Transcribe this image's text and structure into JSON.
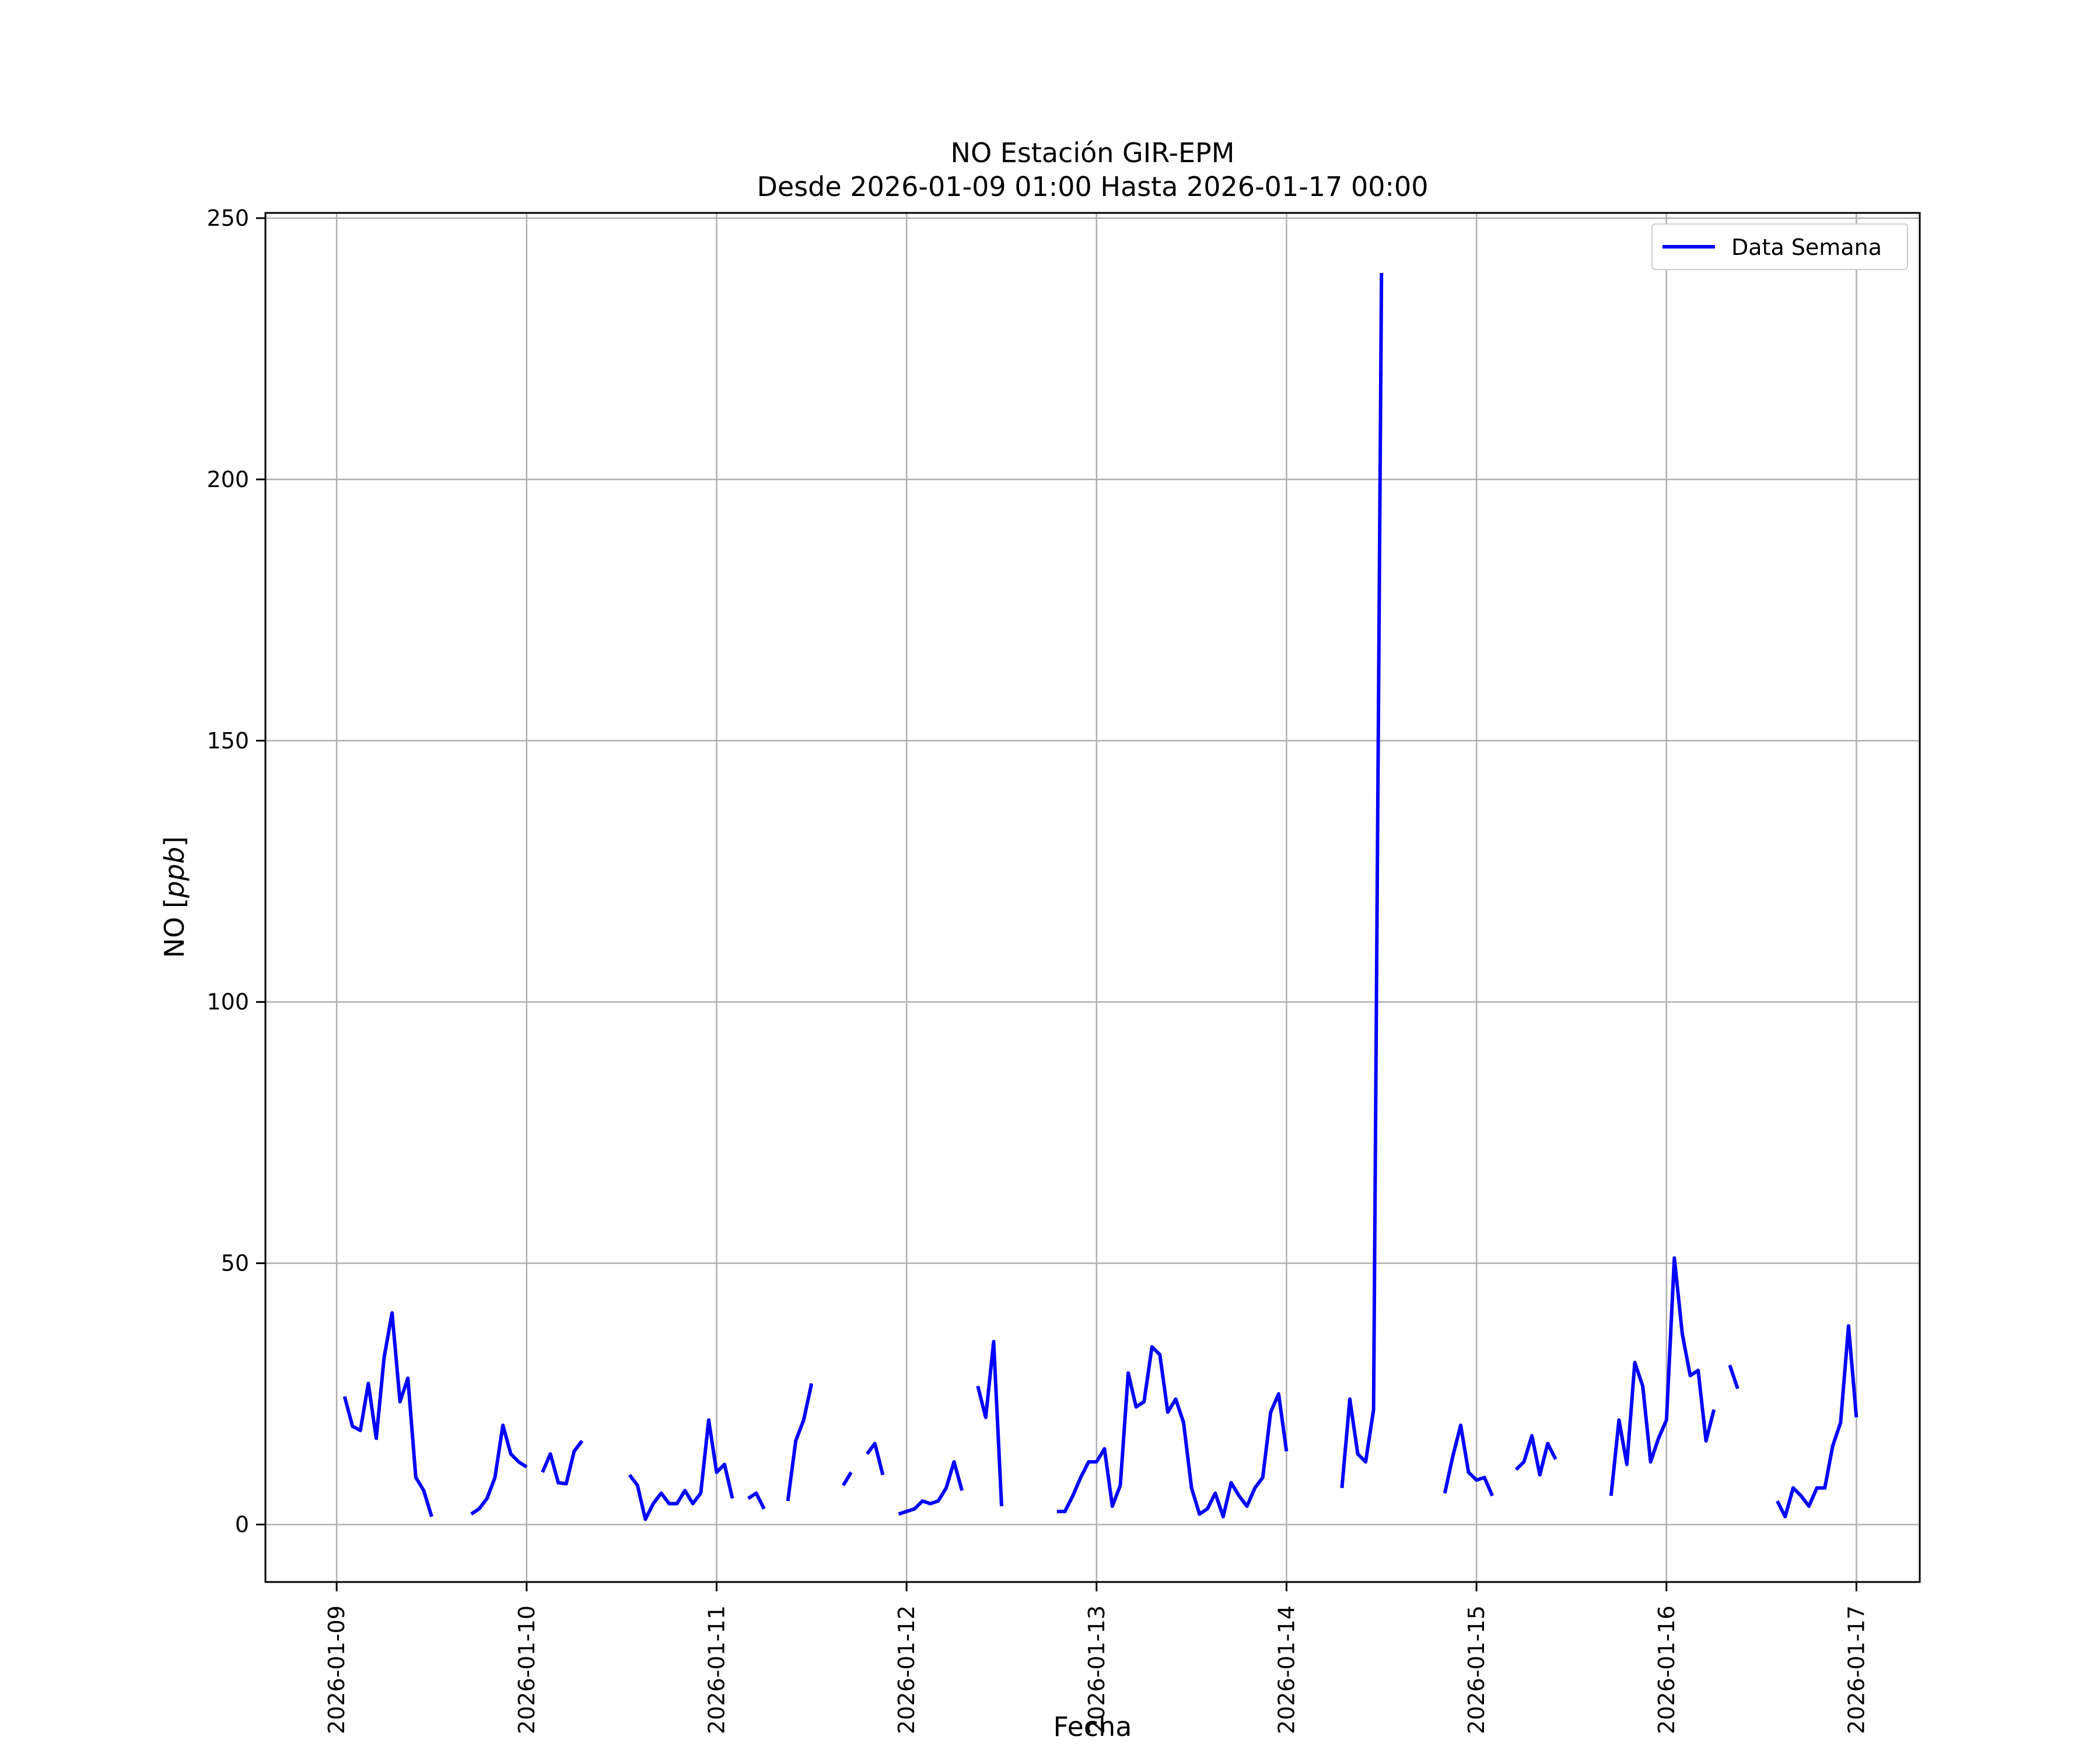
{
  "chart_data": {
    "type": "line",
    "title": "NO Estación GIR-EPM",
    "subtitle": "Desde 2026-01-09 01:00 Hasta 2026-01-17 00:00",
    "xlabel": "Fecha",
    "ylabel": "NO [ppb]",
    "ylabel_prefix": "NO [",
    "ylabel_unit": "ppb",
    "ylabel_suffix": "]",
    "xlim": [
      "2026-01-08 15:00",
      "2026-01-17 08:00"
    ],
    "ylim": [
      -11,
      251
    ],
    "x_ticks": [
      "2026-01-09",
      "2026-01-10",
      "2026-01-11",
      "2026-01-12",
      "2026-01-13",
      "2026-01-14",
      "2026-01-15",
      "2026-01-16",
      "2026-01-17"
    ],
    "y_ticks": [
      "0",
      "50",
      "100",
      "150",
      "200",
      "250"
    ],
    "grid": true,
    "legend_position": "top-right",
    "line_color": "#0000ff",
    "series": [
      {
        "name": "Data Semana",
        "color": "#0000ff",
        "points": [
          [
            "2026-01-09 01:00",
            24.5
          ],
          [
            "2026-01-09 02:00",
            18.8
          ],
          [
            "2026-01-09 03:00",
            18.0
          ],
          [
            "2026-01-09 04:00",
            27.0
          ],
          [
            "2026-01-09 05:00",
            16.5
          ],
          [
            "2026-01-09 06:00",
            32.0
          ],
          [
            "2026-01-09 07:00",
            40.5
          ],
          [
            "2026-01-09 08:00",
            23.5
          ],
          [
            "2026-01-09 09:00",
            28.0
          ],
          [
            "2026-01-09 10:00",
            9.0
          ],
          [
            "2026-01-09 11:00",
            6.5
          ],
          [
            "2026-01-09 12:00",
            1.5
          ],
          [
            "2026-01-09 13:00",
            null
          ],
          [
            "2026-01-09 17:00",
            2.0
          ],
          [
            "2026-01-09 18:00",
            3.0
          ],
          [
            "2026-01-09 19:00",
            5.0
          ],
          [
            "2026-01-09 20:00",
            9.0
          ],
          [
            "2026-01-09 21:00",
            19.0
          ],
          [
            "2026-01-09 22:00",
            13.5
          ],
          [
            "2026-01-09 23:00",
            12.0
          ],
          [
            "2026-01-10 00:00",
            11.0
          ],
          [
            "2026-01-10 01:00",
            null
          ],
          [
            "2026-01-10 02:00",
            10.0
          ],
          [
            "2026-01-10 03:00",
            13.5
          ],
          [
            "2026-01-10 04:00",
            8.0
          ],
          [
            "2026-01-10 05:00",
            7.8
          ],
          [
            "2026-01-10 06:00",
            14.0
          ],
          [
            "2026-01-10 07:00",
            16.0
          ],
          [
            "2026-01-10 08:00",
            null
          ],
          [
            "2026-01-10 13:00",
            9.5
          ],
          [
            "2026-01-10 14:00",
            7.5
          ],
          [
            "2026-01-10 15:00",
            1.0
          ],
          [
            "2026-01-10 16:00",
            4.0
          ],
          [
            "2026-01-10 17:00",
            6.0
          ],
          [
            "2026-01-10 18:00",
            4.0
          ],
          [
            "2026-01-10 19:00",
            4.0
          ],
          [
            "2026-01-10 20:00",
            6.5
          ],
          [
            "2026-01-10 21:00",
            4.0
          ],
          [
            "2026-01-10 22:00",
            6.0
          ],
          [
            "2026-01-10 23:00",
            20.0
          ],
          [
            "2026-01-11 00:00",
            10.0
          ],
          [
            "2026-01-11 01:00",
            11.5
          ],
          [
            "2026-01-11 02:00",
            5.0
          ],
          [
            "2026-01-11 03:00",
            null
          ],
          [
            "2026-01-11 04:00",
            5.0
          ],
          [
            "2026-01-11 05:00",
            6.0
          ],
          [
            "2026-01-11 06:00",
            3.0
          ],
          [
            "2026-01-11 07:00",
            null
          ],
          [
            "2026-01-11 09:00",
            4.5
          ],
          [
            "2026-01-11 10:00",
            16.0
          ],
          [
            "2026-01-11 11:00",
            20.0
          ],
          [
            "2026-01-11 12:00",
            27.0
          ],
          [
            "2026-01-11 13:00",
            null
          ],
          [
            "2026-01-11 16:00",
            7.5
          ],
          [
            "2026-01-11 17:00",
            10.0
          ],
          [
            "2026-01-11 18:00",
            null
          ],
          [
            "2026-01-11 19:00",
            13.5
          ],
          [
            "2026-01-11 20:00",
            15.5
          ],
          [
            "2026-01-11 21:00",
            9.5
          ],
          [
            "2026-01-11 22:00",
            null
          ],
          [
            "2026-01-11 23:00",
            2.0
          ],
          [
            "2026-01-12 00:00",
            2.5
          ],
          [
            "2026-01-12 01:00",
            3.0
          ],
          [
            "2026-01-12 02:00",
            4.5
          ],
          [
            "2026-01-12 03:00",
            4.0
          ],
          [
            "2026-01-12 04:00",
            4.5
          ],
          [
            "2026-01-12 05:00",
            7.0
          ],
          [
            "2026-01-12 06:00",
            12.0
          ],
          [
            "2026-01-12 07:00",
            6.5
          ],
          [
            "2026-01-12 08:00",
            null
          ],
          [
            "2026-01-12 09:00",
            26.5
          ],
          [
            "2026-01-12 10:00",
            20.5
          ],
          [
            "2026-01-12 11:00",
            35.0
          ],
          [
            "2026-01-12 12:00",
            3.5
          ],
          [
            "2026-01-12 13:00",
            null
          ],
          [
            "2026-01-12 19:00",
            2.5
          ],
          [
            "2026-01-12 20:00",
            2.5
          ],
          [
            "2026-01-12 21:00",
            5.5
          ],
          [
            "2026-01-12 22:00",
            9.0
          ],
          [
            "2026-01-12 23:00",
            12.0
          ],
          [
            "2026-01-13 00:00",
            12.0
          ],
          [
            "2026-01-13 01:00",
            14.5
          ],
          [
            "2026-01-13 02:00",
            3.5
          ],
          [
            "2026-01-13 03:00",
            7.5
          ],
          [
            "2026-01-13 04:00",
            29.0
          ],
          [
            "2026-01-13 05:00",
            22.5
          ],
          [
            "2026-01-13 06:00",
            23.5
          ],
          [
            "2026-01-13 07:00",
            34.0
          ],
          [
            "2026-01-13 08:00",
            32.5
          ],
          [
            "2026-01-13 09:00",
            21.5
          ],
          [
            "2026-01-13 10:00",
            24.0
          ],
          [
            "2026-01-13 11:00",
            19.5
          ],
          [
            "2026-01-13 12:00",
            7.0
          ],
          [
            "2026-01-13 13:00",
            2.0
          ],
          [
            "2026-01-13 14:00",
            3.0
          ],
          [
            "2026-01-13 15:00",
            6.0
          ],
          [
            "2026-01-13 16:00",
            1.5
          ],
          [
            "2026-01-13 17:00",
            8.0
          ],
          [
            "2026-01-13 18:00",
            5.5
          ],
          [
            "2026-01-13 19:00",
            3.5
          ],
          [
            "2026-01-13 20:00",
            7.0
          ],
          [
            "2026-01-13 21:00",
            9.0
          ],
          [
            "2026-01-13 22:00",
            21.5
          ],
          [
            "2026-01-13 23:00",
            25.0
          ],
          [
            "2026-01-14 00:00",
            14.0
          ],
          [
            "2026-01-14 01:00",
            null
          ],
          [
            "2026-01-14 07:00",
            7.0
          ],
          [
            "2026-01-14 08:00",
            24.0
          ],
          [
            "2026-01-14 09:00",
            13.5
          ],
          [
            "2026-01-14 10:00",
            12.0
          ],
          [
            "2026-01-14 11:00",
            22.0
          ],
          [
            "2026-01-14 12:00",
            239.5
          ],
          [
            "2026-01-14 13:00",
            null
          ],
          [
            "2026-01-14 20:00",
            6.0
          ],
          [
            "2026-01-14 21:00",
            13.0
          ],
          [
            "2026-01-14 22:00",
            19.0
          ],
          [
            "2026-01-14 23:00",
            10.0
          ],
          [
            "2026-01-15 00:00",
            8.5
          ],
          [
            "2026-01-15 01:00",
            9.0
          ],
          [
            "2026-01-15 02:00",
            5.5
          ],
          [
            "2026-01-15 03:00",
            null
          ],
          [
            "2026-01-15 05:00",
            10.5
          ],
          [
            "2026-01-15 06:00",
            12.0
          ],
          [
            "2026-01-15 07:00",
            17.0
          ],
          [
            "2026-01-15 08:00",
            9.5
          ],
          [
            "2026-01-15 09:00",
            15.5
          ],
          [
            "2026-01-15 10:00",
            12.5
          ],
          [
            "2026-01-15 11:00",
            null
          ],
          [
            "2026-01-15 17:00",
            5.5
          ],
          [
            "2026-01-15 18:00",
            20.0
          ],
          [
            "2026-01-15 19:00",
            11.5
          ],
          [
            "2026-01-15 20:00",
            31.0
          ],
          [
            "2026-01-15 21:00",
            26.5
          ],
          [
            "2026-01-15 22:00",
            12.0
          ],
          [
            "2026-01-15 23:00",
            16.5
          ],
          [
            "2026-01-16 00:00",
            20.0
          ],
          [
            "2026-01-16 01:00",
            51.0
          ],
          [
            "2026-01-16 02:00",
            36.5
          ],
          [
            "2026-01-16 03:00",
            28.5
          ],
          [
            "2026-01-16 04:00",
            29.5
          ],
          [
            "2026-01-16 05:00",
            16.0
          ],
          [
            "2026-01-16 06:00",
            22.0
          ],
          [
            "2026-01-16 07:00",
            null
          ],
          [
            "2026-01-16 08:00",
            30.5
          ],
          [
            "2026-01-16 09:00",
            26.0
          ],
          [
            "2026-01-16 10:00",
            null
          ],
          [
            "2026-01-16 14:00",
            4.5
          ],
          [
            "2026-01-16 15:00",
            1.5
          ],
          [
            "2026-01-16 16:00",
            7.0
          ],
          [
            "2026-01-16 17:00",
            5.5
          ],
          [
            "2026-01-16 18:00",
            3.5
          ],
          [
            "2026-01-16 19:00",
            7.0
          ],
          [
            "2026-01-16 20:00",
            7.0
          ],
          [
            "2026-01-16 21:00",
            15.0
          ],
          [
            "2026-01-16 22:00",
            19.5
          ],
          [
            "2026-01-16 23:00",
            38.0
          ],
          [
            "2026-01-17 00:00",
            20.5
          ]
        ]
      }
    ]
  }
}
